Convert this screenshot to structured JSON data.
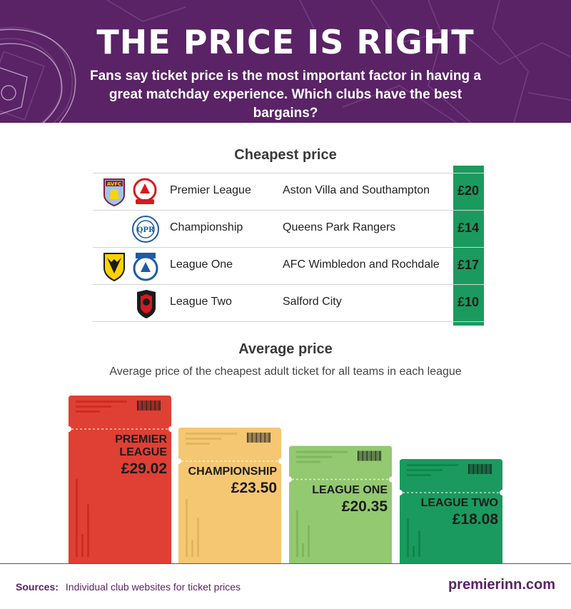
{
  "header": {
    "title": "THE PRICE IS RIGHT",
    "subtitle": "Fans say ticket price is the most important factor in having a great matchday experience. Which clubs have the best bargains?"
  },
  "cheapest": {
    "title": "Cheapest price",
    "rows": [
      {
        "league": "Premier League",
        "clubs": "Aston Villa and Southampton",
        "price": "£20",
        "logos": [
          "aston-villa-crest",
          "southampton-crest"
        ]
      },
      {
        "league": "Championship",
        "clubs": "Queens Park Rangers",
        "price": "£14",
        "logos": [
          "qpr-crest"
        ]
      },
      {
        "league": "League One",
        "clubs": "AFC Wimbledon and Rochdale",
        "price": "£17",
        "logos": [
          "afc-wimbledon-crest",
          "rochdale-crest"
        ]
      },
      {
        "league": "League Two",
        "clubs": "Salford City",
        "price": "£10",
        "logos": [
          "salford-city-crest"
        ]
      }
    ],
    "accent": "#1a9a5e"
  },
  "chart_data": {
    "type": "bar",
    "title": "Average price",
    "subtitle": "Average price of the cheapest adult ticket for all teams in each league",
    "categories": [
      "PREMIER LEAGUE",
      "CHAMPIONSHIP",
      "LEAGUE ONE",
      "LEAGUE TWO"
    ],
    "values": [
      29.02,
      23.5,
      20.35,
      18.08
    ],
    "value_labels": [
      "£29.02",
      "£23.50",
      "£20.35",
      "£18.08"
    ],
    "colors": [
      "#e03f33",
      "#f6c772",
      "#93c970",
      "#1a9a5e"
    ],
    "ylim": [
      0,
      29.02
    ],
    "grid": false
  },
  "footer": {
    "sources_label": "Sources:",
    "sources_text": "Individual club websites for ticket prices",
    "brand": "premierinn.com"
  },
  "colors": {
    "header_bg": "#5a2366",
    "brand": "#5a2366"
  }
}
